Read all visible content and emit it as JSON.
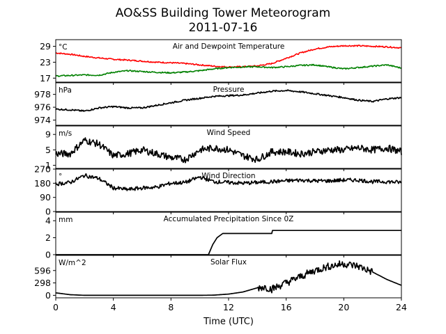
{
  "figure": {
    "title_line1": "AO&SS Building Tower Meteorogram",
    "title_line2": "2011-07-16",
    "xlabel": "Time (UTC)",
    "xticks": [
      0,
      4,
      8,
      12,
      16,
      20,
      24
    ],
    "xlim": [
      0,
      24
    ]
  },
  "chart_data": [
    {
      "type": "line",
      "title": "Air and Dewpoint Temperature",
      "unit_label": "°C",
      "ylim": [
        15.5,
        31.5
      ],
      "yticks": [
        17,
        23,
        29
      ],
      "series": [
        {
          "color": "#ff0000",
          "x": [
            0,
            1,
            2,
            3,
            4,
            5,
            6,
            7,
            8,
            9,
            10,
            11,
            12,
            13,
            14,
            15,
            16,
            17,
            18,
            19,
            20,
            21,
            22,
            23,
            24
          ],
          "y": [
            26.5,
            26.0,
            25.2,
            24.6,
            24.1,
            23.8,
            23.4,
            23.0,
            22.8,
            22.5,
            22.0,
            21.5,
            21.2,
            21.3,
            21.6,
            22.5,
            24.5,
            26.5,
            28.0,
            28.8,
            29.2,
            29.2,
            29.0,
            28.8,
            28.4
          ]
        },
        {
          "color": "#008000",
          "x": [
            0,
            1,
            2,
            3,
            4,
            5,
            6,
            7,
            8,
            9,
            10,
            11,
            12,
            13,
            14,
            15,
            16,
            17,
            18,
            19,
            20,
            21,
            22,
            23,
            24
          ],
          "y": [
            17.8,
            18.0,
            18.2,
            18.1,
            19.2,
            19.8,
            19.5,
            19.2,
            19.0,
            19.3,
            19.8,
            20.5,
            21.0,
            21.2,
            21.3,
            21.0,
            21.3,
            21.8,
            22.0,
            21.2,
            20.5,
            21.0,
            21.5,
            22.0,
            20.8
          ]
        }
      ]
    },
    {
      "type": "line",
      "title": "Pressure",
      "unit_label": "hPa",
      "ylim": [
        973.2,
        979.8
      ],
      "yticks": [
        974,
        976,
        978
      ],
      "series": [
        {
          "color": "#000000",
          "x": [
            0,
            1,
            2,
            3,
            4,
            5,
            6,
            7,
            8,
            9,
            10,
            11,
            12,
            13,
            14,
            15,
            16,
            17,
            18,
            19,
            20,
            21,
            22,
            23,
            24
          ],
          "y": [
            975.7,
            975.6,
            975.4,
            975.9,
            976.1,
            975.9,
            975.9,
            976.3,
            976.7,
            977.1,
            977.4,
            977.7,
            977.8,
            977.9,
            978.2,
            978.5,
            978.6,
            978.4,
            978.1,
            977.8,
            977.5,
            977.1,
            976.9,
            977.3,
            977.5
          ]
        }
      ]
    },
    {
      "type": "line",
      "title": "Wind Speed",
      "unit_label": "m/s",
      "ylim": [
        0.2,
        11.2
      ],
      "yticks": [
        1,
        5,
        9
      ],
      "series": [
        {
          "color": "#000000",
          "x": [
            0,
            1,
            2,
            3,
            4,
            5,
            6,
            7,
            8,
            9,
            10,
            11,
            12,
            13,
            14,
            15,
            16,
            17,
            18,
            19,
            20,
            21,
            22,
            23,
            24
          ],
          "y": [
            4.0,
            4.0,
            7.5,
            6.5,
            3.5,
            4.0,
            5.0,
            4.0,
            3.0,
            2.5,
            5.0,
            5.5,
            5.0,
            3.5,
            2.5,
            4.5,
            4.5,
            4.0,
            4.5,
            5.0,
            5.0,
            5.5,
            5.0,
            5.5,
            4.5
          ]
        }
      ]
    },
    {
      "type": "line",
      "title": "Wind Direction",
      "unit_label": "°",
      "ylim": [
        0,
        270
      ],
      "yticks": [
        0,
        90,
        180,
        270
      ],
      "series": [
        {
          "color": "#000000",
          "x": [
            0,
            1,
            2,
            3,
            4,
            5,
            6,
            7,
            8,
            9,
            10,
            11,
            12,
            13,
            14,
            15,
            16,
            17,
            18,
            19,
            20,
            21,
            22,
            23,
            24
          ],
          "y": [
            175,
            185,
            230,
            210,
            150,
            140,
            150,
            155,
            180,
            185,
            220,
            190,
            185,
            180,
            185,
            190,
            195,
            200,
            195,
            195,
            200,
            200,
            190,
            190,
            185
          ]
        }
      ]
    },
    {
      "type": "line",
      "title": "Accumulated Precipitation Since 0Z",
      "unit_label": "mm",
      "ylim": [
        0,
        5
      ],
      "yticks": [
        0,
        2,
        4
      ],
      "series": [
        {
          "color": "#000000",
          "x": [
            0,
            10.6,
            10.9,
            11.2,
            11.6,
            15,
            15.05,
            24
          ],
          "y": [
            0,
            0,
            1.2,
            2.0,
            2.5,
            2.5,
            2.85,
            2.85
          ]
        }
      ]
    },
    {
      "type": "line",
      "title": "Solar Flux",
      "unit_label": "W/m^2",
      "ylim": [
        -60,
        960
      ],
      "yticks": [
        0,
        298,
        596
      ],
      "series": [
        {
          "color": "#000000",
          "x": [
            0,
            1,
            2,
            4,
            8,
            10,
            11,
            12,
            13,
            14,
            14.5,
            15,
            16,
            17,
            18,
            19,
            20,
            21,
            22,
            23,
            24
          ],
          "y": [
            60,
            15,
            0,
            0,
            0,
            0,
            5,
            30,
            80,
            180,
            200,
            150,
            300,
            450,
            600,
            700,
            760,
            700,
            560,
            380,
            240
          ]
        }
      ]
    }
  ]
}
